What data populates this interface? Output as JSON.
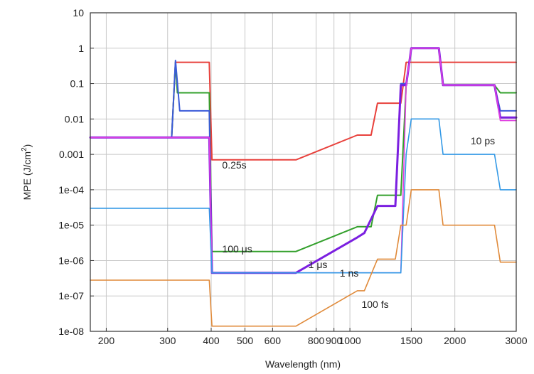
{
  "chart_data": {
    "type": "line",
    "title": "",
    "xlabel": "Wavelength (nm)",
    "ylabel": "MPE (J/cm",
    "ylabel_sup": "2",
    "ylabel_end": ")",
    "x_scale": "log",
    "y_scale": "log",
    "xlim": [
      180,
      3000
    ],
    "ylim": [
      1e-08,
      10
    ],
    "grid": true,
    "legend": "none",
    "x_ticks": [
      {
        "value": 200,
        "label": "200"
      },
      {
        "value": 300,
        "label": "300"
      },
      {
        "value": 400,
        "label": "400"
      },
      {
        "value": 500,
        "label": "500"
      },
      {
        "value": 600,
        "label": "600"
      },
      {
        "value": 800,
        "label": "800"
      },
      {
        "value": 900,
        "label": "900"
      },
      {
        "value": 1000,
        "label": "1000"
      },
      {
        "value": 1500,
        "label": "1500"
      },
      {
        "value": 2000,
        "label": "2000"
      },
      {
        "value": 3000,
        "label": "3000"
      }
    ],
    "y_ticks": [
      {
        "value": 10,
        "label": "10"
      },
      {
        "value": 1,
        "label": "1"
      },
      {
        "value": 0.1,
        "label": "0.1"
      },
      {
        "value": 0.01,
        "label": "0.01"
      },
      {
        "value": 0.001,
        "label": "0.001"
      },
      {
        "value": 0.0001,
        "label": "1e-04"
      },
      {
        "value": 1e-05,
        "label": "1e-05"
      },
      {
        "value": 1e-06,
        "label": "1e-06"
      },
      {
        "value": 1e-07,
        "label": "1e-07"
      },
      {
        "value": 1e-08,
        "label": "1e-08"
      }
    ],
    "series": [
      {
        "color": "#e8413c",
        "width": 2,
        "x": [
          180,
          308,
          316,
          395,
          402,
          700,
          1050,
          1150,
          1200,
          1400,
          1450,
          1500,
          1800,
          1850,
          3000
        ],
        "y": [
          0.003,
          0.003,
          0.4,
          0.4,
          0.0007,
          0.0007,
          0.0035,
          0.0035,
          0.028,
          0.028,
          0.4,
          0.4,
          0.4,
          0.4,
          0.4
        ]
      },
      {
        "color": "#33a02c",
        "width": 2,
        "x": [
          180,
          308,
          316,
          320,
          395,
          402,
          700,
          1050,
          1150,
          1200,
          1350,
          1400,
          1450,
          1500,
          1800,
          1850,
          2600,
          2700,
          3000
        ],
        "y": [
          0.003,
          0.003,
          0.4,
          0.055,
          0.055,
          1.8e-06,
          1.8e-06,
          9e-06,
          9e-06,
          7e-05,
          7e-05,
          7e-05,
          0.09,
          1,
          1,
          0.09,
          0.09,
          0.055,
          0.055
        ]
      },
      {
        "color": "#3a5bd9",
        "width": 2,
        "x": [
          180,
          308,
          316,
          325,
          395,
          402,
          700,
          1050,
          1100,
          1200,
          1350,
          1400,
          1450,
          1500,
          1800,
          1850,
          2600,
          2700,
          3000
        ],
        "y": [
          0.003,
          0.003,
          0.45,
          0.017,
          0.017,
          4.5e-07,
          4.5e-07,
          4.5e-06,
          6e-06,
          3.5e-05,
          3.5e-05,
          0.1,
          0.1,
          1,
          1,
          0.09,
          0.09,
          0.017,
          0.017
        ]
      },
      {
        "color": "#7b1fe0",
        "width": 3,
        "x": [
          180,
          308,
          320,
          395,
          402,
          700,
          1050,
          1100,
          1200,
          1350,
          1400,
          1450,
          1500,
          1800,
          1850,
          2600,
          2700,
          3000
        ],
        "y": [
          0.003,
          0.003,
          0.003,
          0.003,
          4.5e-07,
          4.5e-07,
          4.5e-06,
          6e-06,
          3.5e-05,
          3.5e-05,
          0.09,
          0.09,
          1,
          1,
          0.09,
          0.09,
          0.011,
          0.011
        ]
      },
      {
        "color": "#e040e0",
        "width": 1.6,
        "x": [
          180,
          308,
          320,
          395,
          402,
          1400,
          1450,
          1500,
          1800,
          1850,
          2600,
          2700,
          3000
        ],
        "y": [
          0.003,
          0.003,
          0.003,
          0.003,
          4.5e-07,
          4.5e-07,
          0.09,
          1,
          1,
          0.09,
          0.09,
          0.009,
          0.009
        ]
      },
      {
        "color": "#3399e6",
        "width": 1.6,
        "x": [
          180,
          395,
          402,
          1400,
          1450,
          1500,
          1800,
          1850,
          2600,
          2700,
          3000
        ],
        "y": [
          3e-05,
          3e-05,
          4.5e-07,
          4.5e-07,
          0.001,
          0.01,
          0.01,
          0.001,
          0.001,
          0.0001,
          0.0001
        ]
      },
      {
        "color": "#e08a3a",
        "width": 1.6,
        "x": [
          180,
          395,
          402,
          700,
          1050,
          1100,
          1200,
          1350,
          1400,
          1450,
          1500,
          1800,
          1850,
          2600,
          2700,
          3000
        ],
        "y": [
          2.8e-07,
          2.8e-07,
          1.4e-08,
          1.4e-08,
          1.4e-07,
          1.4e-07,
          1.1e-06,
          1.1e-06,
          1e-05,
          1e-05,
          0.0001,
          0.0001,
          1e-05,
          1e-05,
          9e-07,
          9e-07
        ]
      }
    ],
    "annotations": [
      {
        "text": "0.25s",
        "x": 430,
        "y": 0.0004
      },
      {
        "text": "100 μs",
        "x": 430,
        "y": 1.7e-06
      },
      {
        "text": "1 μs",
        "x": 760,
        "y": 6.2e-07
      },
      {
        "text": "1 ns",
        "x": 935,
        "y": 3.5e-07
      },
      {
        "text": "100 fs",
        "x": 1080,
        "y": 4.6e-08
      },
      {
        "text": "10 ps",
        "x": 2220,
        "y": 0.0019
      }
    ]
  }
}
